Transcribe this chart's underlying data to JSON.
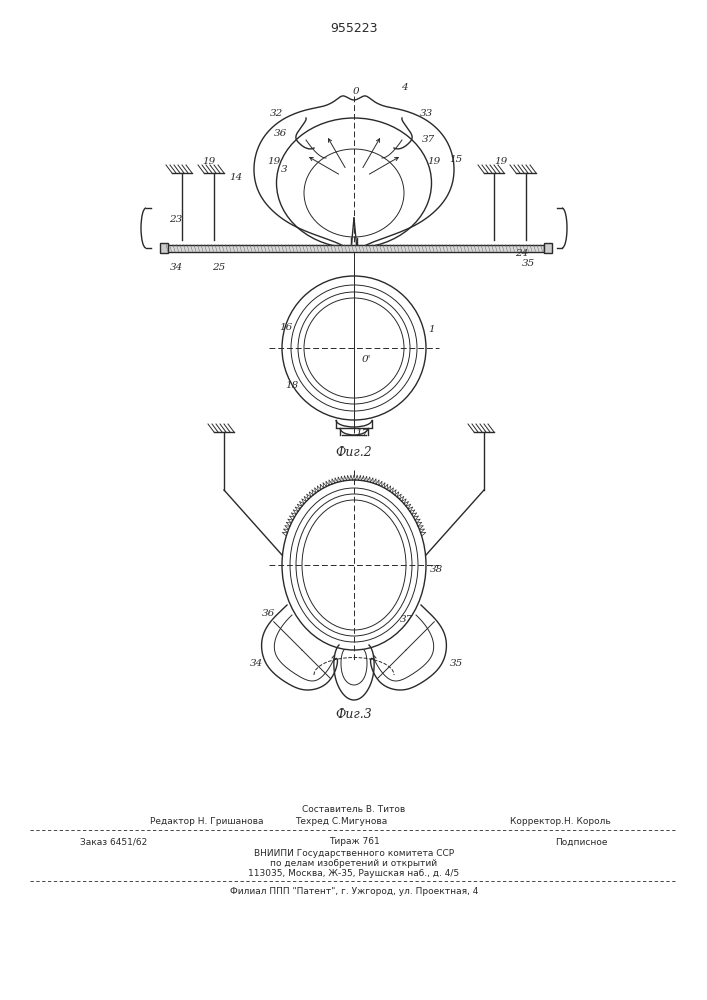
{
  "patent_number": "955223",
  "bg_color": "#ffffff",
  "line_color": "#2a2a2a",
  "fig2_caption": "Фиг.2",
  "fig3_caption": "Фиг.3",
  "footer": {
    "editor_label": "Редактор Н. Гришанова",
    "composer_line1": "Составитель В. Титов",
    "composer_line2": "Техред С.Мигунова",
    "corrector": "Корректор.Н. Король",
    "order": "Заказ 6451/62",
    "tirazh": "Тираж 761",
    "podpisnoe": "Подписное",
    "org_line1": "ВНИИПИ Государственного комитета ССР",
    "org_line2": "по делам изобретений и открытий",
    "org_line3": "113035, Москва, Ж-35, Раушская наб., д. 4/5",
    "filial": "Филиал ППП \"Патент\", г. Ужгород, ул. Проектная, 4"
  }
}
